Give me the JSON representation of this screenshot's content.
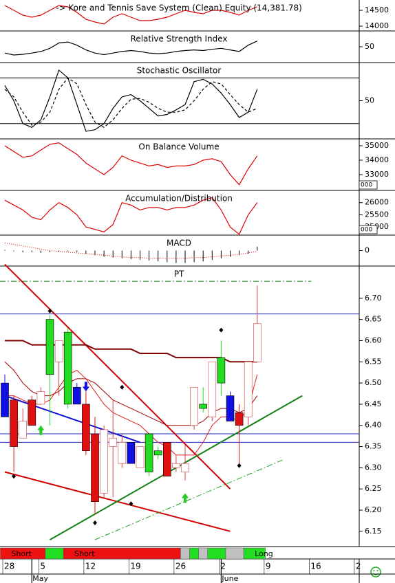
{
  "chart_data": [
    {
      "type": "line",
      "title": "-> Kore and Tennis Save System (Clean) Equity (14,381.78)",
      "ylim": [
        13848,
        14826
      ],
      "yticks": [
        14500,
        14000
      ],
      "series": [
        {
          "color": "#dd0000",
          "values": [
            14652,
            14500,
            14348,
            14283,
            14348,
            14500,
            14652,
            14609,
            14435,
            14217,
            14130,
            14065,
            14283,
            14391,
            14283,
            14174,
            14174,
            14217,
            14283,
            14391,
            14500,
            14435,
            14391,
            14500,
            14500,
            14435,
            14348,
            14500,
            14609
          ]
        }
      ]
    },
    {
      "type": "line",
      "title": "Relative Strength Index",
      "ylim": [
        0,
        100
      ],
      "yticks": [
        50
      ],
      "series": [
        {
          "color": "#000000",
          "values": [
            30,
            24,
            26,
            30,
            35,
            45,
            62,
            65,
            55,
            40,
            30,
            25,
            30,
            35,
            38,
            35,
            30,
            28,
            30,
            35,
            38,
            40,
            38,
            42,
            45,
            40,
            35,
            55,
            68
          ]
        }
      ]
    },
    {
      "type": "line",
      "title": "Stochastic Oscillator",
      "ylim": [
        0,
        100
      ],
      "yticks": [
        50
      ],
      "levels": [
        80,
        20
      ],
      "series": [
        {
          "color": "#000000",
          "style": "solid",
          "values": [
            70,
            50,
            20,
            15,
            25,
            55,
            90,
            80,
            45,
            10,
            12,
            20,
            40,
            55,
            58,
            50,
            40,
            30,
            32,
            38,
            45,
            75,
            78,
            72,
            60,
            45,
            28,
            35,
            65
          ]
        },
        {
          "color": "#000000",
          "style": "dashed",
          "values": [
            65,
            55,
            35,
            18,
            22,
            35,
            65,
            80,
            72,
            45,
            22,
            15,
            25,
            40,
            52,
            53,
            48,
            40,
            35,
            35,
            38,
            50,
            65,
            75,
            72,
            58,
            45,
            35,
            40
          ]
        }
      ]
    },
    {
      "type": "line",
      "title": "On Balance Volume",
      "ylim": [
        31905,
        35476
      ],
      "yticks": [
        35000,
        34000,
        33000
      ],
      "scale_note": "000",
      "series": [
        {
          "color": "#dd0000",
          "values": [
            35000,
            34600,
            34200,
            34300,
            34700,
            35100,
            35200,
            34800,
            34400,
            33800,
            33400,
            33000,
            33500,
            34300,
            34000,
            33800,
            33600,
            33700,
            33500,
            33600,
            33600,
            33700,
            34000,
            34100,
            33900,
            33000,
            32300,
            33400,
            34300
          ]
        }
      ]
    },
    {
      "type": "line",
      "title": "Accumulation/Distribution",
      "ylim": [
        24667,
        26500
      ],
      "yticks": [
        26000,
        25500,
        25000
      ],
      "scale_note": "000",
      "series": [
        {
          "color": "#dd0000",
          "values": [
            26100,
            25900,
            25700,
            25400,
            25300,
            25700,
            26000,
            25800,
            25500,
            25000,
            24900,
            24800,
            25100,
            26000,
            25900,
            25700,
            25800,
            25800,
            25700,
            25800,
            25800,
            25900,
            26100,
            26200,
            25700,
            25000,
            24700,
            25500,
            26000
          ]
        }
      ]
    },
    {
      "type": "macd",
      "title": "MACD",
      "ylim": [
        -0.02,
        0.02
      ],
      "yticks": [
        0
      ],
      "histogram": [
        0.001,
        -0.001,
        -0.002,
        -0.002,
        -0.003,
        -0.002,
        -0.001,
        -0.001,
        -0.002,
        -0.004,
        -0.006,
        -0.008,
        -0.009,
        -0.01,
        -0.011,
        -0.012,
        -0.013,
        -0.014,
        -0.015,
        -0.016,
        -0.016,
        -0.015,
        -0.014,
        -0.012,
        -0.01,
        -0.008,
        -0.006,
        -0.004,
        0.005
      ],
      "signal": {
        "color": "#dd0000",
        "values": [
          0.01,
          0.008,
          0.006,
          0.004,
          0.002,
          0.0,
          -0.001,
          -0.002,
          -0.003,
          -0.004,
          -0.005,
          -0.006,
          -0.007,
          -0.008,
          -0.009,
          -0.009,
          -0.01,
          -0.01,
          -0.01,
          -0.01,
          -0.01,
          -0.009,
          -0.009,
          -0.008,
          -0.007,
          -0.006,
          -0.005,
          -0.003,
          -0.001
        ]
      }
    },
    {
      "type": "candlestick",
      "title": "PT",
      "ylim": [
        6.114,
        6.776
      ],
      "yticks": [
        {
          "value": 6.7,
          "label": "6.70"
        },
        6.65,
        {
          "value": 6.6,
          "label": "6.60"
        },
        6.55,
        {
          "value": 6.5,
          "label": "6.50"
        },
        6.45,
        {
          "value": 6.4,
          "label": "6.40"
        },
        6.35,
        {
          "value": 6.3,
          "label": "6.30"
        },
        6.25,
        {
          "value": 6.2,
          "label": "6.20"
        },
        6.15
      ],
      "xlim": [
        -0.5,
        39.5
      ],
      "xticks": [
        {
          "value": 0,
          "label": "28"
        },
        {
          "value": 4,
          "label": "5"
        },
        {
          "value": 9,
          "label": "12"
        },
        {
          "value": 14,
          "label": "19"
        },
        {
          "value": 19,
          "label": "26"
        },
        {
          "value": 24,
          "label": "2"
        },
        {
          "value": 29,
          "label": "9"
        },
        {
          "value": 34,
          "label": "16"
        },
        {
          "value": 39,
          "label": "2"
        }
      ],
      "months": [
        {
          "value": 3,
          "label": "May"
        },
        {
          "value": 24,
          "label": "June"
        }
      ],
      "open": [
        6.5,
        6.46,
        6.41,
        6.46,
        6.45,
        6.52,
        6.55,
        6.45,
        6.49,
        6.45,
        6.38,
        6.39,
        6.37,
        6.36,
        6.36,
        6.3,
        6.29,
        6.33,
        6.36,
        6.31,
        6.29,
        6.4,
        6.44,
        6.42,
        6.5,
        6.47,
        6.43,
        6.42,
        6.55
      ],
      "high": [
        6.52,
        6.47,
        6.44,
        6.47,
        6.49,
        6.66,
        6.6,
        6.63,
        6.5,
        6.48,
        6.42,
        6.4,
        6.46,
        6.38,
        6.36,
        6.35,
        6.38,
        6.35,
        6.36,
        6.33,
        6.36,
        6.49,
        6.49,
        6.55,
        6.6,
        6.48,
        6.45,
        6.55,
        6.73
      ],
      "low": [
        6.42,
        6.29,
        6.37,
        6.4,
        6.45,
        6.4,
        6.47,
        6.44,
        6.45,
        6.33,
        6.19,
        6.23,
        6.23,
        6.3,
        6.31,
        6.3,
        6.28,
        6.32,
        6.28,
        6.29,
        6.27,
        6.39,
        6.43,
        6.41,
        6.47,
        6.41,
        6.31,
        6.4,
        6.55
      ],
      "close": [
        6.42,
        6.35,
        6.37,
        6.4,
        6.48,
        6.65,
        6.6,
        6.62,
        6.45,
        6.34,
        6.22,
        6.24,
        6.35,
        6.31,
        6.31,
        6.35,
        6.38,
        6.34,
        6.28,
        6.3,
        6.31,
        6.49,
        6.45,
        6.55,
        6.56,
        6.41,
        6.4,
        6.55,
        6.64
      ],
      "colors": [
        "#1010e0",
        "#e01010",
        "#ffffff",
        "#e01010",
        "#ffffff",
        "#22dd22",
        "#ffffff",
        "#22dd22",
        "#1010e0",
        "#e01010",
        "#e01010",
        "#ffffff",
        "#ffffff",
        "#ffffff",
        "#1010e0",
        "#ffffff",
        "#22dd22",
        "#22dd22",
        "#e01010",
        "#ffffff",
        "#ffffff",
        "#ffffff",
        "#22dd22",
        "#ffffff",
        "#22dd22",
        "#1010e0",
        "#e01010",
        "#ffffff",
        "#ffffff"
      ],
      "overlays": [
        {
          "color": "#800000",
          "width": 2,
          "values": [
            6.6,
            6.6,
            6.6,
            6.59,
            6.59,
            6.59,
            6.59,
            6.59,
            6.59,
            6.59,
            6.58,
            6.58,
            6.58,
            6.58,
            6.58,
            6.57,
            6.57,
            6.57,
            6.57,
            6.56,
            6.56,
            6.56,
            6.56,
            6.56,
            6.56,
            6.55,
            6.55,
            6.55,
            6.55
          ]
        },
        {
          "color": "#a00000",
          "width": 1,
          "values": [
            6.55,
            6.53,
            6.5,
            6.48,
            6.47,
            6.47,
            6.48,
            6.5,
            6.51,
            6.51,
            6.5,
            6.48,
            6.46,
            6.45,
            6.44,
            6.43,
            6.42,
            6.41,
            6.4,
            6.4,
            6.4,
            6.4,
            6.41,
            6.43,
            6.44,
            6.44,
            6.43,
            6.44,
            6.47
          ]
        },
        {
          "color": "#e02020",
          "width": 1,
          "values": [
            6.47,
            6.47,
            6.46,
            6.45,
            6.45,
            6.46,
            6.49,
            6.52,
            6.53,
            6.51,
            6.48,
            6.45,
            6.43,
            6.42,
            6.41,
            6.4,
            6.38,
            6.36,
            6.35,
            6.33,
            6.33,
            6.33,
            6.36,
            6.4,
            6.42,
            6.42,
            6.41,
            6.44,
            6.52
          ]
        }
      ],
      "lines": [
        {
          "x": [
            0,
            15
          ],
          "y": [
            6.47,
            6.36
          ],
          "color": "#1010d0",
          "width": 2
        },
        {
          "x": [
            0,
            25
          ],
          "y": [
            6.78,
            6.25
          ],
          "color": "#d00000",
          "width": 2
        },
        {
          "x": [
            0,
            25
          ],
          "y": [
            6.29,
            6.15
          ],
          "color": "#d00000",
          "width": 2
        },
        {
          "x": [
            5,
            33
          ],
          "y": [
            6.13,
            6.47
          ],
          "color": "#108010",
          "width": 2
        },
        {
          "x": [
            10,
            31
          ],
          "y": [
            6.13,
            6.32
          ],
          "color": "#20a020",
          "width": 1,
          "style": "dashdot"
        }
      ],
      "levels": [
        {
          "value": 6.74,
          "color": "#108010",
          "style": "dashdot",
          "to": 34
        },
        {
          "value": 6.663,
          "color": "#2020c0"
        },
        {
          "value": 6.38,
          "color": "#2020c0"
        },
        {
          "value": 6.36,
          "color": "#2020c0"
        }
      ],
      "markers": {
        "x": [
          1,
          5,
          10,
          13,
          14,
          24,
          26
        ],
        "y": [
          6.28,
          6.67,
          6.17,
          6.49,
          6.215,
          6.625,
          6.305
        ]
      },
      "arrows": [
        {
          "x": 4,
          "y": 6.4,
          "dir": "up",
          "color": "#22cc22"
        },
        {
          "x": 20,
          "y": 6.24,
          "dir": "up",
          "color": "#22cc22"
        },
        {
          "x": 9,
          "y": 6.48,
          "dir": "down",
          "color": "#1010e0"
        }
      ]
    },
    {
      "type": "signals",
      "segments": [
        {
          "start": 0,
          "end": 5,
          "color": "#ee1111",
          "label": "Short"
        },
        {
          "start": 5,
          "end": 7,
          "color": "#22dd22"
        },
        {
          "start": 7,
          "end": 20,
          "color": "#ee1111",
          "label": "Short"
        },
        {
          "start": 20,
          "end": 21,
          "color": "#c0c0c0"
        },
        {
          "start": 21,
          "end": 22,
          "color": "#22dd22"
        },
        {
          "start": 22,
          "end": 23,
          "color": "#c0c0c0"
        },
        {
          "start": 23,
          "end": 25,
          "color": "#22dd22"
        },
        {
          "start": 25,
          "end": 27,
          "color": "#c0c0c0"
        },
        {
          "start": 27,
          "end": 29.4,
          "color": "#22dd22",
          "label": "Long"
        }
      ]
    }
  ]
}
